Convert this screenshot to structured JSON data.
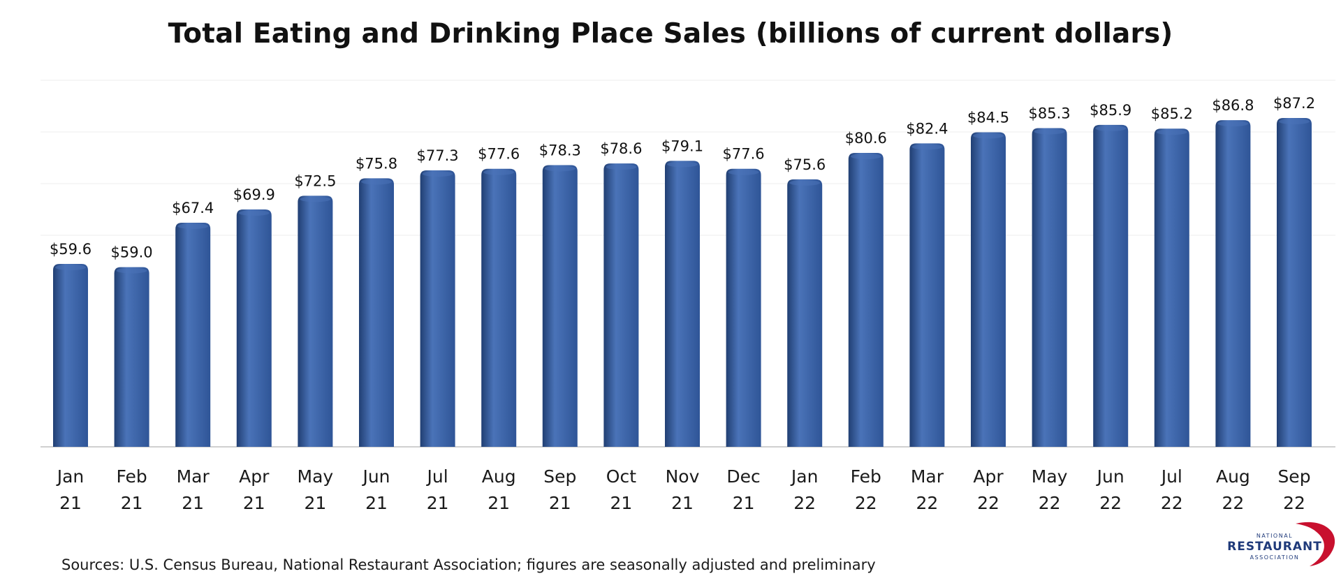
{
  "chart_data": {
    "type": "bar",
    "title": "Total Eating and Drinking Place Sales (billions of current dollars)",
    "categories": [
      [
        "Jan",
        "21"
      ],
      [
        "Feb",
        "21"
      ],
      [
        "Mar",
        "21"
      ],
      [
        "Apr",
        "21"
      ],
      [
        "May",
        "21"
      ],
      [
        "Jun",
        "21"
      ],
      [
        "Jul",
        "21"
      ],
      [
        "Aug",
        "21"
      ],
      [
        "Sep",
        "21"
      ],
      [
        "Oct",
        "21"
      ],
      [
        "Nov",
        "21"
      ],
      [
        "Dec",
        "21"
      ],
      [
        "Jan",
        "22"
      ],
      [
        "Feb",
        "22"
      ],
      [
        "Mar",
        "22"
      ],
      [
        "Apr",
        "22"
      ],
      [
        "May",
        "22"
      ],
      [
        "Jun",
        "22"
      ],
      [
        "Jul",
        "22"
      ],
      [
        "Aug",
        "22"
      ],
      [
        "Sep",
        "22"
      ]
    ],
    "values": [
      59.6,
      59.0,
      67.4,
      69.9,
      72.5,
      75.8,
      77.3,
      77.6,
      78.3,
      78.6,
      79.1,
      77.6,
      75.6,
      80.6,
      82.4,
      84.5,
      85.3,
      85.9,
      85.2,
      86.8,
      87.2
    ],
    "data_labels": [
      "$59.6",
      "$59.0",
      "$67.4",
      "$69.9",
      "$72.5",
      "$75.8",
      "$77.3",
      "$77.6",
      "$78.3",
      "$78.6",
      "$79.1",
      "$77.6",
      "$75.6",
      "$80.6",
      "$82.4",
      "$84.5",
      "$85.3",
      "$85.9",
      "$85.2",
      "$86.8",
      "$87.2"
    ],
    "xlabel": "",
    "ylabel": "",
    "ylim": [
      25,
      95
    ],
    "grid": true,
    "legend": "none",
    "bar_color": "#2f5597",
    "bar_highlight": "#4a73b8",
    "bar_shadow": "#213f73"
  },
  "footer": {
    "source": "Sources: U.S. Census Bureau, National Restaurant Association; figures are seasonally adjusted and preliminary"
  },
  "logo": {
    "top_text": "NATIONAL",
    "main_text": "RESTAURANT",
    "bottom_text": "ASSOCIATION",
    "text_color": "#1f3a7a",
    "swoosh_color": "#c8102e"
  }
}
